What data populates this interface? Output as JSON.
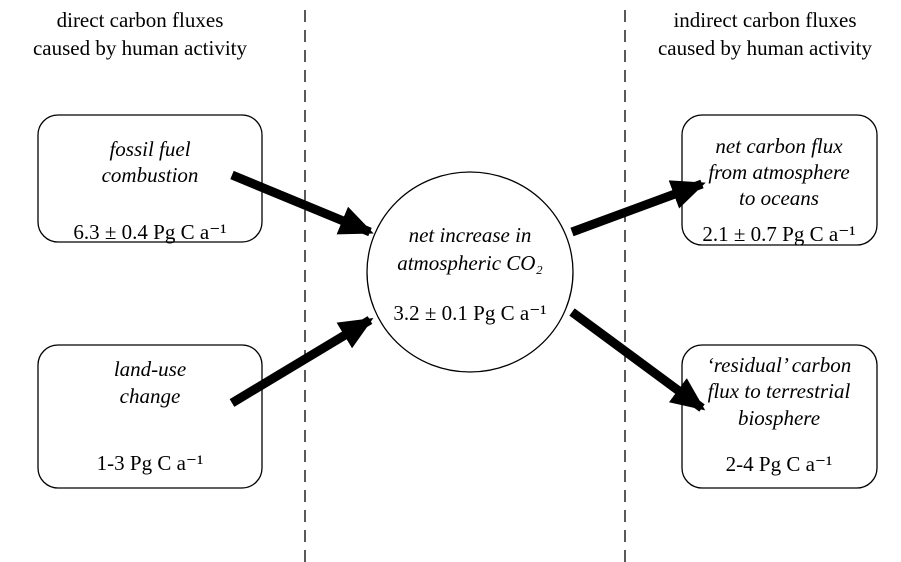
{
  "headers": [
    {
      "lines": [
        "direct carbon fluxes",
        "caused by human activity"
      ]
    },
    {
      "lines": [
        "indirect carbon fluxes",
        "caused by human activity"
      ]
    }
  ],
  "nodes": [
    {
      "label": [
        "fossil fuel",
        "combustion"
      ],
      "value": "6.3 ± 0.4 Pg C a⁻¹"
    },
    {
      "label": [
        "land-use",
        "change"
      ],
      "value": "1-3  Pg C a⁻¹"
    },
    {
      "label": [
        "net increase in",
        "atmospheric CO₂"
      ],
      "value": "3.2 ± 0.1 Pg C a⁻¹"
    },
    {
      "label": [
        "net carbon flux",
        "from atmosphere",
        "to oceans"
      ],
      "value": "2.1 ± 0.7 Pg C a⁻¹"
    },
    {
      "label": [
        "‘residual’ carbon",
        "flux to terrestrial",
        "biosphere"
      ],
      "value": "2-4  Pg C a⁻¹"
    }
  ]
}
